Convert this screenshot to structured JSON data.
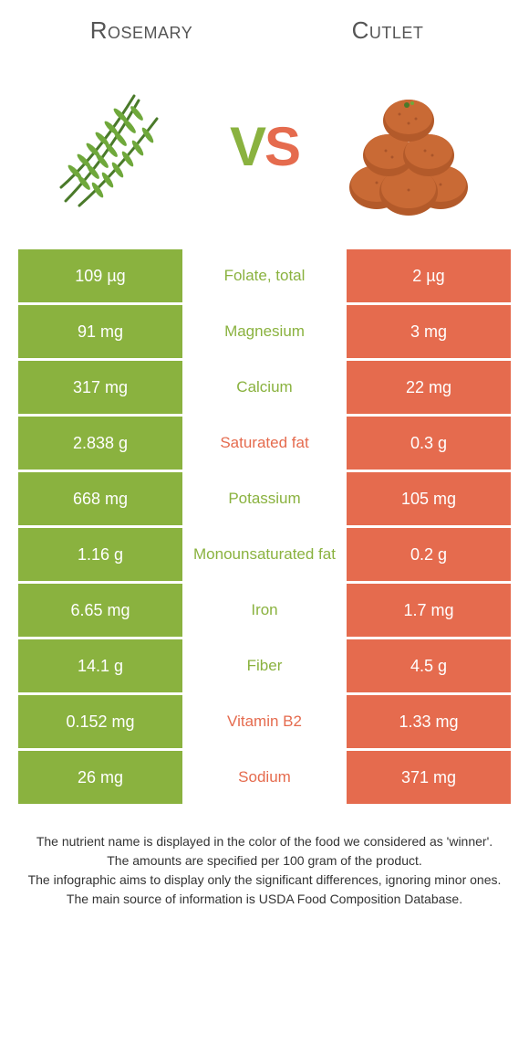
{
  "colors": {
    "left_bg": "#8ab23f",
    "right_bg": "#e56b4e",
    "left_text": "#8ab23f",
    "right_text": "#e56b4e",
    "title_text": "#555555",
    "footer_text": "#333333",
    "page_bg": "#ffffff"
  },
  "titles": {
    "left": "Rosemary",
    "right": "Cutlet"
  },
  "vs": {
    "v": "V",
    "s": "S"
  },
  "rows": [
    {
      "left": "109 µg",
      "label": "Folate, total",
      "right": "2 µg",
      "winner": "left"
    },
    {
      "left": "91 mg",
      "label": "Magnesium",
      "right": "3 mg",
      "winner": "left"
    },
    {
      "left": "317 mg",
      "label": "Calcium",
      "right": "22 mg",
      "winner": "left"
    },
    {
      "left": "2.838 g",
      "label": "Saturated fat",
      "right": "0.3 g",
      "winner": "right"
    },
    {
      "left": "668 mg",
      "label": "Potassium",
      "right": "105 mg",
      "winner": "left"
    },
    {
      "left": "1.16 g",
      "label": "Monounsaturated fat",
      "right": "0.2 g",
      "winner": "left"
    },
    {
      "left": "6.65 mg",
      "label": "Iron",
      "right": "1.7 mg",
      "winner": "left"
    },
    {
      "left": "14.1 g",
      "label": "Fiber",
      "right": "4.5 g",
      "winner": "left"
    },
    {
      "left": "0.152 mg",
      "label": "Vitamin B2",
      "right": "1.33 mg",
      "winner": "right"
    },
    {
      "left": "26 mg",
      "label": "Sodium",
      "right": "371 mg",
      "winner": "right"
    }
  ],
  "footer": {
    "line1": "The nutrient name is displayed in the color of the food we considered as 'winner'.",
    "line2": "The amounts are specified per 100 gram of the product.",
    "line3": "The infographic aims to display only the significant differences, ignoring minor ones.",
    "line4": "The main source of information is USDA Food Composition Database."
  }
}
